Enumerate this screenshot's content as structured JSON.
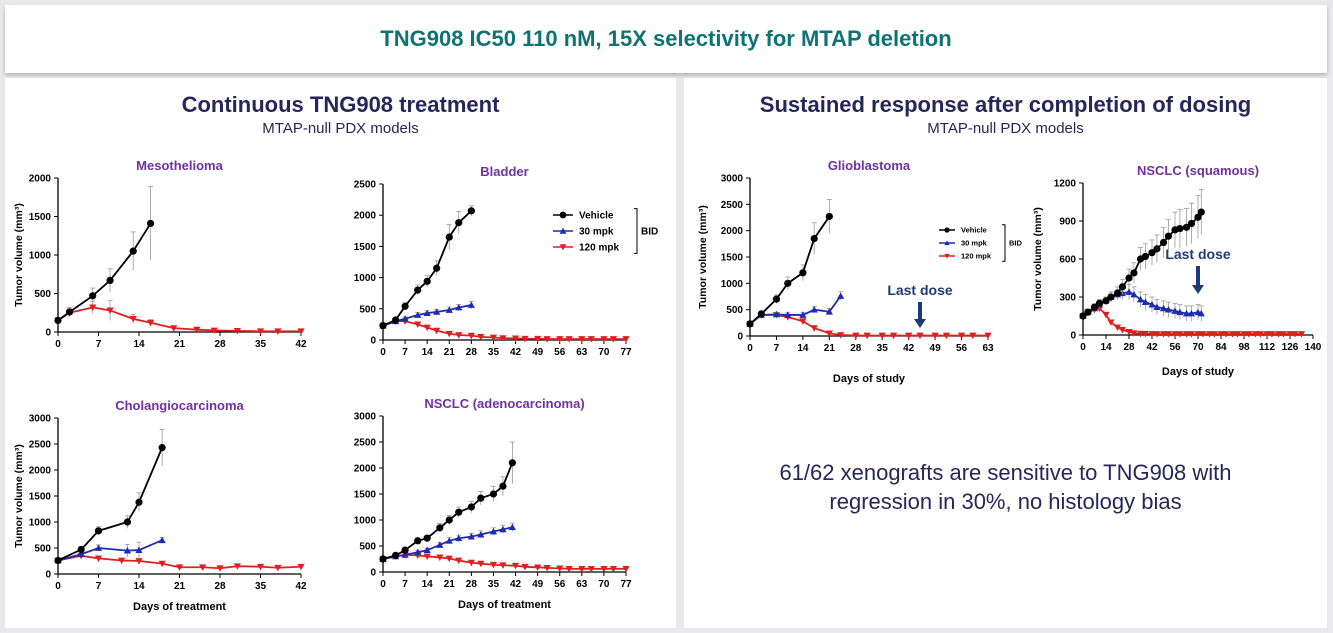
{
  "colors": {
    "teal": "#0f7373",
    "navy": "#262659",
    "purple": "#7030a0",
    "vehicle": "#000000",
    "mpk30": "#1f2bb0",
    "mpk120": "#e02020",
    "arrow": "#1f3a7a",
    "error": "#999999"
  },
  "banner": {
    "title": "TNG908 IC50 110 nM, 15X selectivity for MTAP deletion"
  },
  "left_panel": {
    "title": "Continuous TNG908 treatment",
    "subtitle": "MTAP-null PDX models"
  },
  "right_panel": {
    "title": "Sustained response after completion of dosing",
    "subtitle": "MTAP-null PDX models",
    "summary_line1": "61/62 xenografts are sensitive to TNG908 with",
    "summary_line2": "regression in 30%, no histology bias"
  },
  "chart_data": [
    {
      "id": "mesothelioma",
      "type": "line",
      "title": "Mesothelioma",
      "xlabel": "",
      "ylabel": "Tumor volume (mm³)",
      "xlim": [
        0,
        42
      ],
      "ylim": [
        0,
        2000
      ],
      "xticks": [
        "0",
        "7",
        "14",
        "21",
        "28",
        "35",
        "42"
      ],
      "yticks": [
        "0",
        "500",
        "1000",
        "1500",
        "2000"
      ],
      "series": [
        {
          "name": "Vehicle",
          "marker": "circle",
          "x": [
            0,
            2,
            6,
            9,
            13,
            16
          ],
          "y": [
            150,
            260,
            470,
            670,
            1050,
            1410
          ],
          "err": [
            40,
            60,
            100,
            150,
            250,
            480
          ]
        },
        {
          "name": "120 mpk",
          "marker": "tri-down",
          "x": [
            0,
            2,
            6,
            9,
            13,
            16,
            20,
            24,
            27,
            31,
            35,
            38,
            42
          ],
          "y": [
            150,
            250,
            320,
            280,
            170,
            120,
            50,
            30,
            20,
            15,
            10,
            10,
            10
          ],
          "err": [
            30,
            50,
            80,
            130,
            60,
            40,
            20,
            10,
            8,
            6,
            5,
            5,
            5
          ]
        }
      ]
    },
    {
      "id": "bladder",
      "type": "line",
      "title": "Bladder",
      "xlabel": "",
      "ylabel": "",
      "xlim": [
        0,
        77
      ],
      "ylim": [
        0,
        2500
      ],
      "xticks": [
        "0",
        "7",
        "14",
        "21",
        "28",
        "35",
        "42",
        "49",
        "56",
        "63",
        "70",
        "77"
      ],
      "yticks": [
        "0",
        "500",
        "1000",
        "1500",
        "2000",
        "2500"
      ],
      "series": [
        {
          "name": "Vehicle",
          "marker": "circle",
          "x": [
            0,
            4,
            7,
            11,
            14,
            17,
            21,
            24,
            28
          ],
          "y": [
            230,
            320,
            540,
            800,
            940,
            1150,
            1650,
            1880,
            2070
          ],
          "err": [
            20,
            40,
            60,
            80,
            90,
            120,
            200,
            180,
            80
          ]
        },
        {
          "name": "30 mpk",
          "marker": "triangle",
          "x": [
            0,
            4,
            7,
            11,
            14,
            17,
            21,
            24,
            28
          ],
          "y": [
            230,
            300,
            340,
            400,
            430,
            450,
            480,
            520,
            560
          ],
          "err": [
            20,
            30,
            30,
            40,
            40,
            40,
            50,
            50,
            60
          ]
        },
        {
          "name": "120 mpk",
          "marker": "tri-down",
          "x": [
            0,
            4,
            7,
            11,
            14,
            17,
            21,
            24,
            28,
            31,
            35,
            38,
            42,
            45,
            49,
            52,
            56,
            59,
            63,
            66,
            70,
            73,
            77
          ],
          "y": [
            230,
            300,
            300,
            250,
            200,
            150,
            100,
            80,
            70,
            50,
            40,
            30,
            25,
            20,
            20,
            15,
            15,
            15,
            15,
            15,
            15,
            15,
            15
          ],
          "err": [
            20,
            30,
            30,
            30,
            30,
            20,
            20,
            15,
            15,
            10,
            10,
            10,
            8,
            8,
            5,
            5,
            5,
            5,
            5,
            5,
            5,
            5,
            5
          ]
        }
      ],
      "legend": {
        "entries": [
          "Vehicle",
          "30 mpk",
          "120 mpk"
        ],
        "bracket_label": "BID"
      }
    },
    {
      "id": "cholangio",
      "type": "line",
      "title": "Cholangiocarcinoma",
      "xlabel": "Days of treatment",
      "ylabel": "Tumor volume (mm³)",
      "xlim": [
        0,
        42
      ],
      "ylim": [
        0,
        3000
      ],
      "xticks": [
        "0",
        "7",
        "14",
        "21",
        "28",
        "35",
        "42"
      ],
      "yticks": [
        "0",
        "500",
        "1000",
        "1500",
        "2000",
        "2500",
        "3000"
      ],
      "series": [
        {
          "name": "Vehicle",
          "marker": "circle",
          "x": [
            0,
            4,
            7,
            12,
            14,
            18
          ],
          "y": [
            260,
            470,
            830,
            1000,
            1380,
            2430
          ],
          "err": [
            30,
            60,
            80,
            120,
            180,
            350
          ]
        },
        {
          "name": "30 mpk",
          "marker": "triangle",
          "x": [
            0,
            4,
            7,
            12,
            14,
            18
          ],
          "y": [
            260,
            380,
            500,
            450,
            460,
            650
          ],
          "err": [
            30,
            40,
            60,
            120,
            150,
            50
          ]
        },
        {
          "name": "120 mpk",
          "marker": "tri-down",
          "x": [
            0,
            4,
            7,
            11,
            14,
            18,
            21,
            25,
            28,
            31,
            35,
            38,
            42
          ],
          "y": [
            260,
            350,
            300,
            260,
            250,
            200,
            130,
            130,
            110,
            150,
            140,
            120,
            140
          ],
          "err": [
            30,
            40,
            30,
            30,
            30,
            20,
            15,
            15,
            15,
            15,
            15,
            15,
            15
          ]
        }
      ]
    },
    {
      "id": "nsclc_adeno",
      "type": "line",
      "title": "NSCLC (adenocarcinoma)",
      "xlabel": "Days of treatment",
      "ylabel": "",
      "xlim": [
        0,
        77
      ],
      "ylim": [
        0,
        3000
      ],
      "xticks": [
        "0",
        "7",
        "14",
        "21",
        "28",
        "35",
        "42",
        "49",
        "56",
        "63",
        "70",
        "77"
      ],
      "yticks": [
        "0",
        "500",
        "1000",
        "1500",
        "2000",
        "2500",
        "3000"
      ],
      "series": [
        {
          "name": "Vehicle",
          "marker": "circle",
          "x": [
            0,
            4,
            7,
            11,
            14,
            18,
            21,
            24,
            28,
            31,
            35,
            38,
            41
          ],
          "y": [
            250,
            320,
            420,
            600,
            650,
            850,
            1000,
            1150,
            1250,
            1420,
            1500,
            1650,
            2100
          ],
          "err": [
            20,
            30,
            40,
            60,
            60,
            80,
            90,
            100,
            110,
            130,
            150,
            180,
            400
          ]
        },
        {
          "name": "30 mpk",
          "marker": "triangle",
          "x": [
            0,
            4,
            7,
            11,
            14,
            18,
            21,
            24,
            28,
            31,
            35,
            38,
            41
          ],
          "y": [
            250,
            300,
            330,
            380,
            420,
            520,
            600,
            650,
            680,
            720,
            780,
            820,
            860
          ],
          "err": [
            20,
            30,
            30,
            40,
            40,
            50,
            60,
            60,
            60,
            70,
            70,
            80,
            80
          ]
        },
        {
          "name": "120 mpk",
          "marker": "tri-down",
          "x": [
            0,
            4,
            7,
            11,
            14,
            18,
            21,
            24,
            28,
            31,
            35,
            38,
            42,
            45,
            49,
            52,
            56,
            59,
            63,
            66,
            70,
            73,
            77
          ],
          "y": [
            250,
            300,
            330,
            320,
            300,
            280,
            260,
            220,
            180,
            160,
            140,
            130,
            120,
            100,
            90,
            80,
            70,
            60,
            60,
            60,
            60,
            60,
            60
          ],
          "err": [
            20,
            30,
            30,
            30,
            30,
            30,
            30,
            25,
            20,
            20,
            20,
            15,
            15,
            10,
            10,
            10,
            10,
            10,
            10,
            10,
            10,
            10,
            10
          ]
        }
      ]
    },
    {
      "id": "glioblastoma",
      "type": "line",
      "title": "Glioblastoma",
      "xlabel": "Days of study",
      "ylabel": "Tumor volume (mm³)",
      "xlim": [
        0,
        63
      ],
      "ylim": [
        0,
        3000
      ],
      "xticks": [
        "0",
        "7",
        "14",
        "21",
        "28",
        "35",
        "42",
        "49",
        "56",
        "63"
      ],
      "yticks": [
        "0",
        "500",
        "1000",
        "1500",
        "2000",
        "2500",
        "3000"
      ],
      "series": [
        {
          "name": "Vehicle",
          "marker": "circle",
          "x": [
            0,
            3,
            7,
            10,
            14,
            17,
            21
          ],
          "y": [
            230,
            420,
            700,
            1000,
            1200,
            1850,
            2270
          ],
          "err": [
            30,
            50,
            80,
            120,
            150,
            300,
            320
          ]
        },
        {
          "name": "30 mpk",
          "marker": "triangle",
          "x": [
            0,
            3,
            7,
            10,
            14,
            17,
            21,
            24
          ],
          "y": [
            230,
            400,
            410,
            400,
            400,
            500,
            460,
            760
          ],
          "err": [
            30,
            40,
            40,
            50,
            50,
            60,
            60,
            80
          ]
        },
        {
          "name": "120 mpk",
          "marker": "tri-down",
          "x": [
            0,
            3,
            7,
            10,
            14,
            17,
            21,
            24,
            28,
            31,
            35,
            38,
            42,
            45,
            49,
            52,
            56,
            59,
            63
          ],
          "y": [
            230,
            400,
            400,
            360,
            280,
            150,
            50,
            20,
            10,
            10,
            10,
            10,
            10,
            10,
            10,
            10,
            10,
            10,
            10
          ],
          "err": [
            30,
            40,
            40,
            50,
            50,
            30,
            20,
            10,
            5,
            5,
            5,
            5,
            5,
            5,
            5,
            5,
            5,
            5,
            5
          ]
        }
      ],
      "legend": {
        "entries": [
          "Vehicle",
          "30 mpk",
          "120 mpk"
        ],
        "bracket_label": "BID"
      },
      "annotation": {
        "text": "Last dose",
        "x": 45
      }
    },
    {
      "id": "nsclc_squamous",
      "type": "line",
      "title": "NSCLC (squamous)",
      "xlabel": "Days of study",
      "ylabel": "Tumor volume (mm³)",
      "xlim": [
        0,
        140
      ],
      "ylim": [
        0,
        1200
      ],
      "xticks": [
        "0",
        "14",
        "28",
        "42",
        "56",
        "70",
        "84",
        "98",
        "112",
        "126",
        "140"
      ],
      "yticks": [
        "0",
        "300",
        "600",
        "900",
        "1200"
      ],
      "series": [
        {
          "name": "Vehicle",
          "marker": "circle",
          "x": [
            0,
            3,
            7,
            10,
            14,
            17,
            21,
            24,
            28,
            31,
            35,
            38,
            42,
            45,
            49,
            52,
            56,
            59,
            63,
            66,
            70,
            72
          ],
          "y": [
            150,
            180,
            220,
            250,
            270,
            300,
            330,
            380,
            450,
            490,
            600,
            620,
            650,
            680,
            730,
            780,
            830,
            840,
            850,
            880,
            930,
            970
          ],
          "err": [
            20,
            25,
            25,
            30,
            30,
            40,
            50,
            60,
            70,
            80,
            90,
            100,
            100,
            110,
            120,
            130,
            140,
            150,
            150,
            160,
            170,
            180
          ]
        },
        {
          "name": "30 mpk",
          "marker": "triangle",
          "x": [
            0,
            3,
            7,
            10,
            14,
            17,
            21,
            24,
            28,
            31,
            35,
            38,
            42,
            45,
            49,
            52,
            56,
            59,
            63,
            66,
            70,
            72
          ],
          "y": [
            150,
            180,
            210,
            240,
            270,
            300,
            320,
            330,
            340,
            320,
            280,
            260,
            240,
            220,
            210,
            200,
            190,
            180,
            170,
            170,
            180,
            170
          ],
          "err": [
            20,
            25,
            25,
            30,
            30,
            40,
            40,
            50,
            60,
            60,
            60,
            60,
            60,
            60,
            60,
            60,
            60,
            60,
            60,
            60,
            60,
            60
          ]
        },
        {
          "name": "120 mpk",
          "marker": "tri-down",
          "x": [
            0,
            3,
            7,
            10,
            14,
            17,
            21,
            24,
            28,
            31,
            35,
            38,
            42,
            45,
            49,
            52,
            56,
            59,
            63,
            66,
            70,
            73,
            77,
            80,
            84,
            87,
            91,
            94,
            98,
            101,
            105,
            108,
            112,
            115,
            119,
            122,
            126,
            129,
            133
          ],
          "y": [
            150,
            180,
            200,
            210,
            160,
            100,
            60,
            40,
            25,
            15,
            10,
            10,
            8,
            8,
            8,
            8,
            8,
            8,
            8,
            8,
            8,
            8,
            8,
            8,
            8,
            8,
            8,
            8,
            8,
            8,
            8,
            8,
            8,
            8,
            8,
            8,
            8,
            8,
            8
          ],
          "err": [
            20,
            20,
            20,
            20,
            20,
            15,
            15,
            10,
            8,
            5,
            5,
            5,
            4,
            4,
            4,
            4,
            4,
            4,
            4,
            4,
            4,
            4,
            4,
            4,
            4,
            4,
            4,
            4,
            4,
            4,
            4,
            4,
            4,
            4,
            4,
            4,
            4,
            4,
            4
          ]
        }
      ],
      "annotation": {
        "text": "Last dose",
        "x": 70
      }
    }
  ]
}
